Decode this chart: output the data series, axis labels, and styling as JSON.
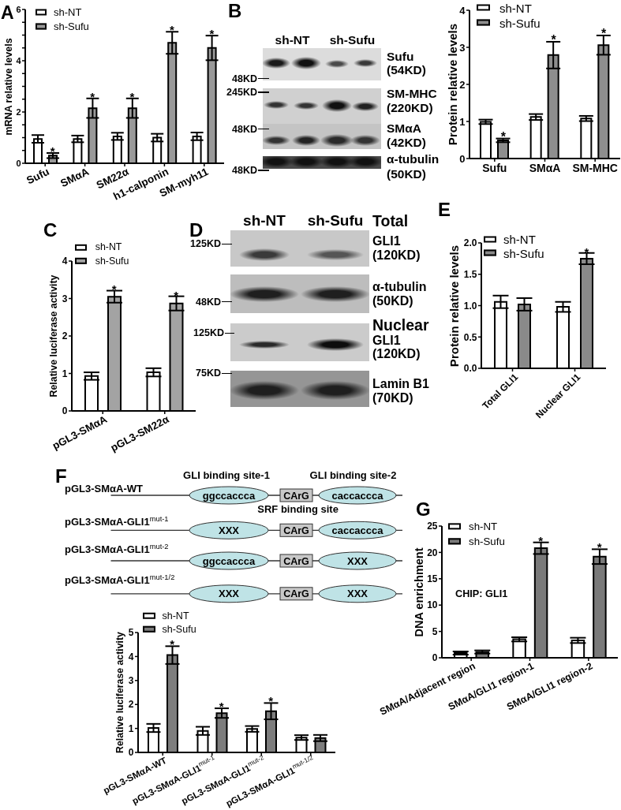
{
  "chart_data": [
    {
      "type": "bar",
      "title": "A",
      "ylabel": "mRNA relative levels",
      "categories": [
        "Sufu",
        "SMαA",
        "SM22α",
        "h1-calponin",
        "SM-myh11"
      ],
      "series": [
        {
          "name": "sh-NT",
          "color": "#ffffff",
          "values": [
            0.95,
            0.95,
            1.05,
            1.0,
            1.05
          ],
          "errors": [
            0.15,
            0.13,
            0.14,
            0.15,
            0.15
          ]
        },
        {
          "name": "sh-Sufu",
          "color": "#999999",
          "values": [
            0.3,
            2.15,
            2.15,
            4.7,
            4.5
          ],
          "errors": [
            0.1,
            0.38,
            0.38,
            0.43,
            0.48
          ]
        }
      ],
      "ylim": [
        0,
        6
      ],
      "yticks": [
        0,
        {
          "value": 0.5,
          "label": null
        },
        {
          "value": 1,
          "label": null
        },
        {
          "value": 1.5,
          "label": null
        },
        2,
        {
          "value": 2.5,
          "label": null
        },
        {
          "value": 3,
          "label": null
        },
        {
          "value": 3.5,
          "label": null
        },
        4,
        {
          "value": 4.5,
          "label": null
        },
        {
          "value": 5,
          "label": null
        },
        {
          "value": 5.5,
          "label": null
        },
        6
      ],
      "legend": "top left",
      "annotations": [
        {
          "text": "*",
          "x": "Sufu",
          "y": 0.4
        },
        {
          "text": "*",
          "x": "SMαA",
          "y": 2.53
        },
        {
          "text": "*",
          "x": "SM22α",
          "y": 2.53
        },
        {
          "text": "*",
          "x": "h1-calponin",
          "y": 5.13
        },
        {
          "text": "*",
          "x": "SM-myh11",
          "y": 4.98
        }
      ]
    },
    {
      "type": "other",
      "title": "B",
      "annotations": [
        "sh-NT",
        "sh-Sufu",
        "48KD",
        "245KD",
        "48KD",
        "48KD",
        "Sufu (54KD)",
        "SM-MHC (220KD)",
        "SMαA (42KD)",
        "α-tubulin (50KD)"
      ]
    },
    {
      "type": "bar",
      "ylabel": "Protein relative levels",
      "categories": [
        "Sufu",
        "SMαA",
        "SM-MHC"
      ],
      "series": [
        {
          "name": "sh-NT",
          "color": "#ffffff",
          "values": [
            0.99,
            1.12,
            1.08
          ],
          "errors": [
            0.06,
            0.08,
            0.07
          ]
        },
        {
          "name": "sh-Sufu",
          "color": "#8e8e8e",
          "values": [
            0.49,
            2.79,
            3.06
          ],
          "errors": [
            0.05,
            0.36,
            0.26
          ]
        }
      ],
      "ylim": [
        0,
        4
      ],
      "yticks": [
        0,
        1,
        2,
        3,
        4
      ],
      "legend": "top left",
      "annotations": [
        {
          "text": "*",
          "x": "Sufu",
          "y": 0.54
        },
        {
          "text": "*",
          "x": "SMαA",
          "y": 3.15
        },
        {
          "text": "*",
          "x": "SM-MHC",
          "y": 3.32
        }
      ]
    },
    {
      "type": "bar",
      "title": "C",
      "ylabel": "Relative luciferase activity",
      "categories": [
        "pGL3-SMαA",
        "pGL3-SM22α"
      ],
      "series": [
        {
          "name": "sh-NT",
          "color": "#ffffff",
          "values": [
            0.93,
            1.03
          ],
          "errors": [
            0.1,
            0.11
          ]
        },
        {
          "name": "sh-Sufu",
          "color": "#a3a3a3",
          "values": [
            3.05,
            2.87
          ],
          "errors": [
            0.16,
            0.19
          ]
        }
      ],
      "ylim": [
        0,
        4
      ],
      "yticks": [
        0,
        1,
        2,
        3,
        4
      ],
      "legend": "top left",
      "annotations": [
        {
          "text": "*",
          "x": "pGL3-SMαA",
          "y": 3.21
        },
        {
          "text": "*",
          "x": "pGL3-SM22α",
          "y": 3.06
        }
      ]
    },
    {
      "type": "other",
      "title": "D",
      "annotations": [
        "sh-NT",
        "sh-Sufu",
        "Total",
        "GLI1 (120KD)",
        "α-tubulin (50KD)",
        "Nuclear",
        "GLI1 (120KD)",
        "Lamin B1 (70KD)",
        "125KD",
        "48KD",
        "125KD",
        "75KD"
      ]
    },
    {
      "type": "bar",
      "title": "E",
      "ylabel": "Protein relative levels",
      "categories": [
        "Total GLI1",
        "Nuclear GLI1"
      ],
      "series": [
        {
          "name": "sh-NT",
          "color": "#ffffff",
          "values": [
            1.06,
            0.98
          ],
          "errors": [
            0.1,
            0.08
          ]
        },
        {
          "name": "sh-Sufu",
          "color": "#8a8a8a",
          "values": [
            1.02,
            1.75
          ],
          "errors": [
            0.1,
            0.09
          ]
        }
      ],
      "ylim": [
        0,
        2
      ],
      "yticks": [
        {
          "value": 0,
          "label": "0.0"
        },
        0.5,
        {
          "value": 1,
          "label": "1.0"
        },
        1.5,
        {
          "value": 2,
          "label": "2.0"
        }
      ],
      "legend": "top left",
      "annotations": [
        {
          "text": "*",
          "x": "Nuclear GLI1",
          "y": 1.84
        }
      ]
    },
    {
      "type": "other",
      "title": "F",
      "annotations": [
        "GLI binding site-1",
        "GLI binding site-2",
        "SRF binding site",
        "pGL3-SMαA-WT",
        "ggccaccca",
        "CArG",
        "caccaccca",
        "pGL3-SMαA-GLI1$^{mut-1}$",
        "XXX",
        "CArG",
        "caccaccca",
        "pGL3-SMαA-GLI1$^{mut-2}$",
        "ggccaccca",
        "CArG",
        "XXX",
        "pGL3-SMαA-GLI1$^{mut-1/2}$",
        "XXX",
        "CArG",
        "XXX"
      ]
    },
    {
      "type": "bar",
      "ylabel": "Relative luciferase activity",
      "categories": [
        "pGL3-SMαA-WT",
        "pGL3-SMαA-GLI1$^{mut-1}$",
        "pGL3-SMαA-GLI1$^{mut-2}$",
        "pGL3-SMαA-GLI1$^{mut-1/2}$"
      ],
      "series": [
        {
          "name": "sh-NT",
          "color": "#ffffff",
          "values": [
            1.02,
            0.9,
            0.98,
            0.62
          ],
          "errors": [
            0.17,
            0.17,
            0.12,
            0.1
          ]
        },
        {
          "name": "sh-Sufu",
          "color": "#7d7d7d",
          "values": [
            4.06,
            1.64,
            1.72,
            0.6
          ],
          "errors": [
            0.37,
            0.2,
            0.34,
            0.13
          ]
        }
      ],
      "ylim": [
        0,
        5
      ],
      "yticks": [
        0,
        1,
        2,
        3,
        4,
        5
      ],
      "legend": "top left",
      "annotations": [
        {
          "text": "*",
          "x": "pGL3-SMαA-WT",
          "y": 4.43
        },
        {
          "text": "*",
          "x": "pGL3-SMαA-GLI1$^{mut-1}$",
          "y": 1.84
        },
        {
          "text": "*",
          "x": "pGL3-SMαA-GLI1$^{mut-2}$",
          "y": 2.06
        }
      ]
    },
    {
      "type": "bar",
      "title": "G",
      "ylabel": "DNA enrichment",
      "categories": [
        "SMαA/Adjacent region",
        "SMαA/GLI1 region-1",
        "SMαA/GLI1 region-2"
      ],
      "series": [
        {
          "name": "sh-NT",
          "color": "#ffffff",
          "values": [
            0.9,
            3.5,
            3.3
          ],
          "errors": [
            0.3,
            0.4,
            0.5
          ]
        },
        {
          "name": "sh-Sufu",
          "color": "#7a7a7a",
          "values": [
            1.1,
            20.8,
            19.2
          ],
          "errors": [
            0.3,
            1.1,
            1.4
          ]
        }
      ],
      "ylim": [
        0,
        25
      ],
      "yticks": [
        0,
        5,
        10,
        15,
        20,
        25
      ],
      "legend": "top left",
      "annotations": [
        "CHIP: GLI1",
        {
          "text": "*",
          "x": "SMαA/GLI1 region-1",
          "y": 21.9
        },
        {
          "text": "*",
          "x": "SMαA/GLI1 region-2",
          "y": 20.6
        }
      ]
    }
  ]
}
